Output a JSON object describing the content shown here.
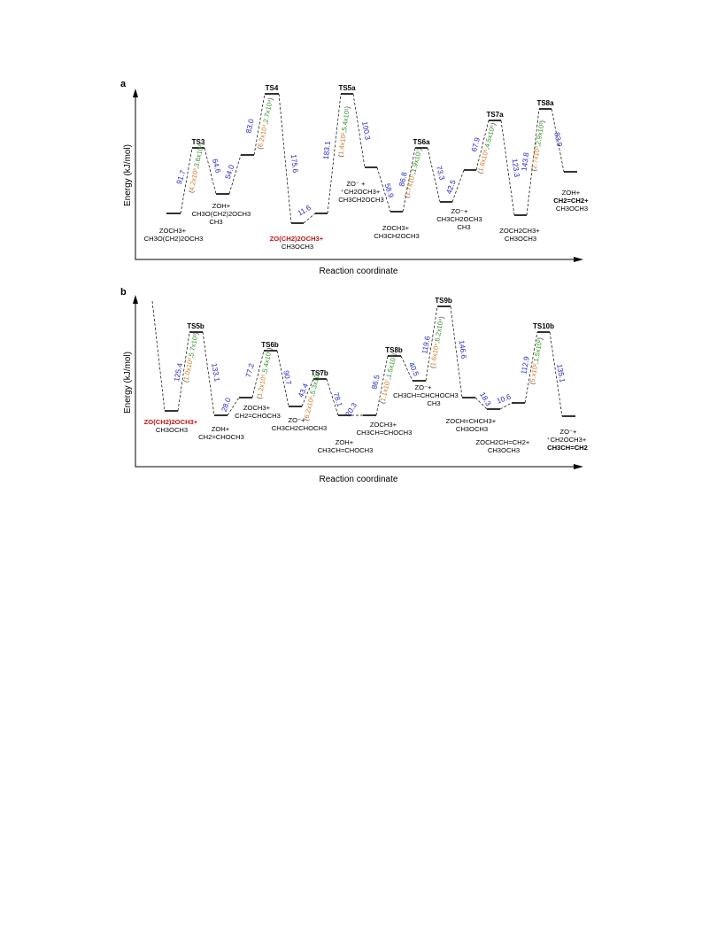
{
  "panels": [
    {
      "label": "a",
      "ylabel": "Energy (kJ/mol)",
      "xlabel": "Reaction coordinate",
      "levels": [
        {
          "kind": "min",
          "lines": [
            "ZOCH3+",
            "CH3O(CH2)2OCH3"
          ]
        },
        {
          "kind": "ts",
          "name": "TS3"
        },
        {
          "kind": "min",
          "lines": [
            "ZOH+",
            "CH3O(CH2)2OCH3",
            "CH3"
          ]
        },
        {
          "kind": "min",
          "lines": []
        },
        {
          "kind": "ts",
          "name": "TS4"
        },
        {
          "kind": "min",
          "lines": [
            "ZO(CH2)2OCH3+",
            "CH3OCH3"
          ],
          "hl": 0
        },
        {
          "kind": "min",
          "lines": []
        },
        {
          "kind": "ts",
          "name": "TS5a"
        },
        {
          "kind": "min",
          "lines": [
            "ZO⁻ +",
            "⁺CH2OCH3+",
            "CH3CH2OCH3"
          ]
        },
        {
          "kind": "min",
          "lines": [
            "ZOCH3+",
            "CH3CH2OCH3"
          ]
        },
        {
          "kind": "ts",
          "name": "TS6a"
        },
        {
          "kind": "min",
          "lines": [
            "ZO⁻+",
            "CH3CH2OCH3",
            "CH3"
          ]
        },
        {
          "kind": "min",
          "lines": []
        },
        {
          "kind": "ts",
          "name": "TS7a"
        },
        {
          "kind": "min",
          "lines": [
            "ZOCH2CH3+",
            "CH3OCH3"
          ]
        },
        {
          "kind": "ts",
          "name": "TS8a"
        },
        {
          "kind": "min",
          "lines": [
            "ZOH+",
            "CH2=CH2+",
            "CH3OCH3"
          ],
          "bd": 1
        }
      ],
      "energies": [
        "91.7",
        "64.6",
        "54.0",
        "83.0",
        "175.6",
        "11.6",
        "183.1",
        "100.3",
        "58.9",
        "86.8",
        "73.3",
        "42.5",
        "67.9",
        "123.3",
        "143.8",
        "83.9"
      ],
      "rates": [
        {
          "a": "4.2x10³",
          "b": "3.6x10³"
        },
        {
          "a": "6.2x10⁴",
          "b": "2.7x10⁴"
        },
        {
          "a": "1.4x10²",
          "b": "5.4x10¹"
        },
        {
          "a": "1.7x10⁷",
          "b": "1.9x10⁷"
        },
        {
          "a": "1.6x10⁶",
          "b": "4.5x10⁶"
        },
        {
          "a": "2.7x10³",
          "b": "2.9x10³"
        }
      ]
    },
    {
      "label": "b",
      "ylabel": "Energy (kJ/mol)",
      "xlabel": "Reaction coordinate",
      "levels": [
        {
          "kind": "min",
          "lines": [
            "ZO(CH2)2OCH3+",
            "CH3OCH3"
          ],
          "hl": 0
        },
        {
          "kind": "ts",
          "name": "TS5b"
        },
        {
          "kind": "min",
          "lines": [
            "ZOH+",
            "CH2=CHOCH3"
          ]
        },
        {
          "kind": "min",
          "lines": [
            "ZOCH3+",
            "CH2=CHOCH3"
          ]
        },
        {
          "kind": "ts",
          "name": "TS6b"
        },
        {
          "kind": "min",
          "lines": [
            "ZO⁻+",
            "CH3CH2CHOCH3"
          ]
        },
        {
          "kind": "ts",
          "name": "TS7b"
        },
        {
          "kind": "min",
          "lines": [
            "ZOH+",
            "CH3CH=CHOCH3"
          ]
        },
        {
          "kind": "min",
          "lines": [
            "ZOCH3+",
            "CH3CH=CHOCH3"
          ]
        },
        {
          "kind": "ts",
          "name": "TS8b"
        },
        {
          "kind": "min",
          "lines": [
            "ZO⁻+",
            "CH3CH=CHCHOCH3",
            "CH3"
          ]
        },
        {
          "kind": "ts",
          "name": "TS9b"
        },
        {
          "kind": "min",
          "lines": [
            "ZOCH=CHCH3+",
            "CH3OCH3"
          ]
        },
        {
          "kind": "min",
          "lines": [
            "ZOCH2CH=CH2+",
            "CH3OCH3"
          ]
        },
        {
          "kind": "min",
          "lines": []
        },
        {
          "kind": "ts",
          "name": "TS10b"
        },
        {
          "kind": "min",
          "lines": [
            "ZO⁻+",
            "⁺CH2OCH3+",
            "CH3CH=CH2"
          ],
          "bd": 2
        }
      ],
      "energies": [
        "125.4",
        "133.1",
        "28.0",
        "77.2",
        "90.7",
        "43.4",
        "78.1",
        "20.3",
        "86.5",
        "40.5",
        "119.6",
        "146.6",
        "18.3",
        "10.6",
        "112.9",
        "135.1"
      ],
      "rates": [
        {
          "a": "1.0x10³",
          "b": "5.7x10³"
        },
        {
          "a": "1.2x10⁵",
          "b": "5.4x10⁵"
        },
        {
          "a": "6.2x10⁶",
          "b": "5.3x10⁷"
        },
        {
          "a": "1.1x10⁷",
          "b": "1.5x10⁷"
        },
        {
          "a": "1.6x10⁴",
          "b": "6.2x10⁴"
        },
        {
          "a": "5.x10²",
          "b": "1.5x10²"
        }
      ]
    }
  ]
}
